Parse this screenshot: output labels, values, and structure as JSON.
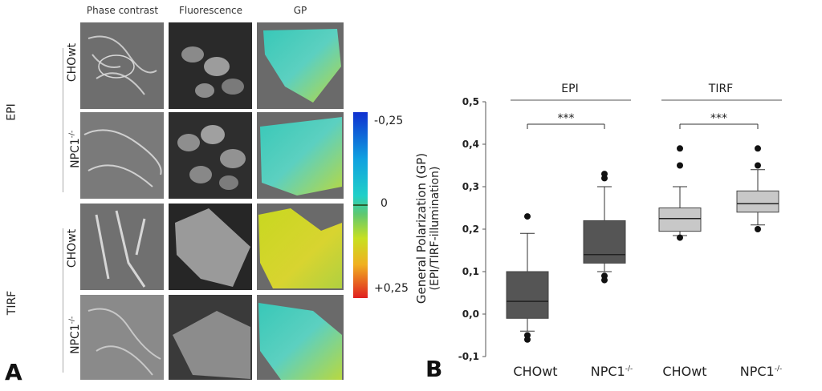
{
  "panel_a": {
    "letter": "A",
    "columns": [
      "Phase contrast",
      "Fluorescence",
      "GP"
    ],
    "groups": [
      {
        "name": "EPI",
        "rows": [
          "CHOwt",
          "NPC1"
        ]
      },
      {
        "name": "TIRF",
        "rows": [
          "CHOwt",
          "NPC1"
        ]
      }
    ],
    "npc1_superscript": "-/-",
    "colorbar": {
      "top": "-0,25",
      "mid": "0",
      "bottom": "+0,25",
      "colors": [
        "#1030d0",
        "#10c8e0",
        "#2ab0a0",
        "#c8e020",
        "#f0a020",
        "#e02020"
      ]
    }
  },
  "panel_b": {
    "letter": "B",
    "groups": [
      "EPI",
      "TIRF"
    ],
    "significance": [
      "***",
      "***"
    ],
    "ylabel_line1": "General Polarization (GP)",
    "ylabel_line2": "(EPI/TIRF-illumination)",
    "x_labels": [
      "CHOwt",
      "NPC1",
      "CHOwt",
      "NPC1"
    ],
    "npc1_superscript": "-/-"
  },
  "chart_data": {
    "type": "box",
    "title": "",
    "xlabel": "",
    "ylabel": "General Polarization (GP) (EPI/TIRF-illumination)",
    "ylim": [
      -0.1,
      0.5
    ],
    "yticks": [
      "-0,1",
      "0,0",
      "0,1",
      "0,2",
      "0,3",
      "0,4",
      "0,5"
    ],
    "categories": [
      "CHOwt",
      "NPC1-/-",
      "CHOwt",
      "NPC1-/-"
    ],
    "groups": [
      "EPI",
      "EPI",
      "TIRF",
      "TIRF"
    ],
    "boxes": [
      {
        "q1": -0.01,
        "median": 0.03,
        "q3": 0.1,
        "whisker_low": -0.04,
        "whisker_high": 0.19,
        "outliers": [
          0.23,
          -0.05,
          -0.06
        ],
        "color": "#555555"
      },
      {
        "q1": 0.12,
        "median": 0.14,
        "q3": 0.22,
        "whisker_low": 0.1,
        "whisker_high": 0.3,
        "outliers": [
          0.33,
          0.32,
          0.09,
          0.08
        ],
        "color": "#555555"
      },
      {
        "q1": 0.195,
        "median": 0.225,
        "q3": 0.25,
        "whisker_low": 0.185,
        "whisker_high": 0.3,
        "outliers": [
          0.39,
          0.35,
          0.18
        ],
        "color": "#c8c8c8"
      },
      {
        "q1": 0.24,
        "median": 0.26,
        "q3": 0.29,
        "whisker_low": 0.21,
        "whisker_high": 0.34,
        "outliers": [
          0.39,
          0.35,
          0.2
        ],
        "color": "#c8c8c8"
      }
    ],
    "significance": [
      {
        "between": [
          0,
          1
        ],
        "label": "***"
      },
      {
        "between": [
          2,
          3
        ],
        "label": "***"
      }
    ],
    "grid": false
  }
}
